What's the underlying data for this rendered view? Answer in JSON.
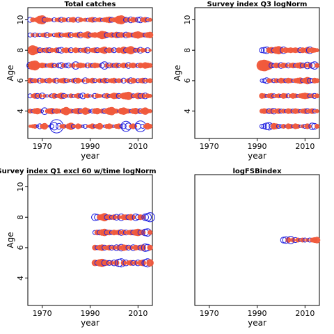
{
  "colors": {
    "positive": "#f05a3c",
    "negative": "#1f1fe0",
    "frame": "#000000"
  },
  "chart_data": [
    {
      "type": "scatter",
      "subtype": "bubble-residuals",
      "title": "Total catches",
      "xlabel": "year",
      "ylabel": "Age",
      "xlim": [
        1964,
        2016
      ],
      "ylim": [
        2.2,
        10.8
      ],
      "xticks": [
        1970,
        1990,
        2010
      ],
      "yticks": [
        4,
        6,
        8,
        10
      ],
      "x": [
        1965,
        1966,
        1967,
        1968,
        1969,
        1970,
        1971,
        1972,
        1973,
        1974,
        1975,
        1976,
        1977,
        1978,
        1979,
        1980,
        1981,
        1982,
        1983,
        1984,
        1985,
        1986,
        1987,
        1988,
        1989,
        1990,
        1991,
        1992,
        1993,
        1994,
        1995,
        1996,
        1997,
        1998,
        1999,
        2000,
        2001,
        2002,
        2003,
        2004,
        2005,
        2006,
        2007,
        2008,
        2009,
        2010,
        2011,
        2012,
        2013,
        2014,
        2015
      ],
      "series": [
        {
          "age": 3,
          "values": [
            0.3,
            0.4,
            0.5,
            -0.3,
            -0.6,
            0.5,
            0.7,
            0.3,
            -0.2,
            -0.5,
            -0.9,
            -1.6,
            -0.7,
            0.4,
            0.5,
            -0.3,
            0.6,
            0.8,
            -0.5,
            0.3,
            0.6,
            0.4,
            -0.3,
            -0.5,
            0.3,
            0.4,
            0.6,
            -0.4,
            0.5,
            0.7,
            0.3,
            -0.3,
            0.5,
            0.6,
            0.4,
            -0.3,
            0.5,
            0.6,
            -0.4,
            -0.6,
            -1.2,
            -0.8,
            0.4,
            0.6,
            0.3,
            -0.7,
            -1.3,
            -0.5,
            0.4,
            0.7,
            0.5
          ]
        },
        {
          "age": 4,
          "values": [
            0.5,
            -0.4,
            0.6,
            0.7,
            0.5,
            -0.3,
            -0.8,
            0.4,
            0.6,
            0.7,
            -0.5,
            0.6,
            0.5,
            -0.3,
            0.7,
            0.9,
            0.6,
            0.5,
            -0.4,
            0.6,
            0.7,
            -0.6,
            0.5,
            0.8,
            0.6,
            -0.3,
            -0.5,
            0.6,
            0.7,
            0.4,
            0.5,
            -0.6,
            0.6,
            0.8,
            0.9,
            0.6,
            0.5,
            -0.3,
            0.7,
            0.8,
            0.6,
            0.5,
            -0.4,
            0.6,
            0.7,
            0.5,
            -0.6,
            0.6,
            0.8,
            0.5,
            0.4
          ]
        },
        {
          "age": 5,
          "values": [
            -0.5,
            0.4,
            0.6,
            -0.6,
            0.5,
            -0.7,
            0.4,
            -0.3,
            0.3,
            -0.5,
            0.6,
            -0.4,
            0.5,
            0.7,
            -0.6,
            0.4,
            -0.3,
            0.5,
            -0.4,
            0.4,
            0.6,
            -0.5,
            -0.7,
            0.4,
            0.5,
            -0.3,
            0.3,
            -0.6,
            0.5,
            0.4,
            0.3,
            -0.5,
            0.6,
            -0.4,
            0.5,
            0.7,
            0.6,
            -0.6,
            0.5,
            0.7,
            0.8,
            0.9,
            0.6,
            -0.5,
            0.5,
            0.7,
            -0.6,
            0.6,
            -0.7,
            0.5,
            0.4
          ]
        },
        {
          "age": 6,
          "values": [
            0.6,
            -0.5,
            0.5,
            0.4,
            -0.6,
            0.5,
            0.4,
            -0.5,
            0.6,
            0.3,
            0.5,
            -0.6,
            0.4,
            0.5,
            0.6,
            -0.5,
            0.4,
            -0.3,
            0.5,
            -0.6,
            0.6,
            0.3,
            0.4,
            -0.7,
            0.5,
            0.4,
            0.6,
            -0.5,
            0.3,
            0.5,
            -0.4,
            0.6,
            -0.5,
            0.4,
            0.5,
            0.6,
            -0.4,
            0.5,
            0.4,
            -0.6,
            0.3,
            0.5,
            -0.7,
            0.6,
            0.4,
            -0.5,
            0.5,
            0.6,
            -0.6,
            0.4,
            0.5
          ]
        },
        {
          "age": 7,
          "values": [
            -0.8,
            1.0,
            1.1,
            0.7,
            0.5,
            0.6,
            0.5,
            -0.4,
            0.5,
            0.6,
            -0.5,
            0.4,
            -0.6,
            -0.7,
            0.5,
            -0.5,
            -0.6,
            0.4,
            0.5,
            -0.9,
            0.5,
            0.6,
            0.5,
            0.4,
            -0.6,
            0.5,
            -0.5,
            0.6,
            0.5,
            0.4,
            -0.6,
            -0.9,
            0.5,
            -0.6,
            0.5,
            -0.5,
            0.6,
            -0.5,
            0.4,
            0.6,
            0.5,
            -0.7,
            0.5,
            0.6,
            0.4,
            -0.5,
            0.6,
            0.5,
            0.7,
            0.6,
            0.5
          ]
        },
        {
          "age": 8,
          "values": [
            0.4,
            1.1,
            0.9,
            0.6,
            -0.6,
            0.5,
            -0.5,
            0.6,
            -0.6,
            0.5,
            0.4,
            0.6,
            -0.6,
            -0.7,
            0.5,
            0.6,
            0.5,
            -0.6,
            0.4,
            0.6,
            0.5,
            -0.5,
            0.5,
            0.6,
            -0.7,
            0.4,
            0.5,
            0.6,
            -0.6,
            0.5,
            0.6,
            0.8,
            -0.5,
            0.6,
            0.5,
            -0.6,
            -0.4,
            0.6,
            0.5,
            0.8,
            -0.6,
            0.7,
            0.9,
            0.6,
            -0.5,
            0.5,
            -0.7,
            0.5,
            0.4,
            -0.6,
            0.3
          ]
        },
        {
          "age": 9,
          "values": [
            -0.5,
            0.4,
            -0.5,
            0.4,
            -0.4,
            0.4,
            0.5,
            -0.6,
            0.4,
            0.3,
            -0.4,
            0.5,
            0.6,
            -0.5,
            0.4,
            0.5,
            0.6,
            -0.6,
            0.4,
            0.5,
            0.6,
            -0.7,
            0.5,
            0.6,
            0.8,
            -0.5,
            0.5,
            0.6,
            0.5,
            0.7,
            0.9,
            0.8,
            -0.6,
            0.5,
            0.6,
            -0.5,
            0.7,
            -0.6,
            0.6,
            0.5,
            -0.7,
            0.6,
            0.5,
            -0.5,
            0.7,
            0.8,
            0.6,
            0.5,
            -0.5,
            0.6,
            0.7
          ]
        },
        {
          "age": 10,
          "values": [
            -0.6,
            0.5,
            0.4,
            0.6,
            0.9,
            1.0,
            -0.6,
            0.5,
            0.4,
            0.3,
            -0.5,
            0.4,
            0.5,
            -0.6,
            0.5,
            0.4,
            -0.5,
            0.5,
            0.6,
            0.4,
            -0.6,
            0.5,
            0.3,
            0.4,
            -0.4,
            0.5,
            0.6,
            -0.5,
            0.4,
            0.5,
            -0.4,
            0.5,
            0.6,
            0.7,
            -0.6,
            0.5,
            0.6,
            0.9,
            1.0,
            0.7,
            -0.6,
            0.5,
            -0.7,
            0.6,
            0.5,
            -0.6,
            -0.7,
            0.5,
            0.6,
            -0.5,
            0.4
          ]
        }
      ]
    },
    {
      "type": "scatter",
      "subtype": "bubble-residuals",
      "title": "Survey index Q3 logNorm",
      "xlabel": "year",
      "ylabel": "Age",
      "xlim": [
        1964,
        2016
      ],
      "ylim": [
        2.2,
        10.8
      ],
      "xticks": [
        1970,
        1990,
        2010
      ],
      "yticks": [
        4,
        6,
        8,
        10
      ],
      "x": [
        1992,
        1993,
        1994,
        1995,
        1996,
        1997,
        1998,
        1999,
        2000,
        2001,
        2002,
        2003,
        2004,
        2005,
        2006,
        2007,
        2008,
        2009,
        2010,
        2011,
        2012,
        2013,
        2014,
        2015
      ],
      "series": [
        {
          "age": 3,
          "values": [
            -0.5,
            -0.6,
            -0.8,
            -0.9,
            -0.6,
            0.7,
            0.6,
            -0.5,
            -0.4,
            0.5,
            -0.3,
            0.6,
            0.5,
            -0.4,
            0.6,
            0.5,
            -0.3,
            0.4,
            -0.5,
            0.6,
            0.4,
            -0.8,
            -0.7,
            0.5
          ]
        },
        {
          "age": 4,
          "values": [
            0.5,
            0.6,
            0.5,
            -0.6,
            0.6,
            -0.7,
            0.5,
            0.6,
            -0.5,
            0.5,
            -0.4,
            0.6,
            0.5,
            -0.5,
            0.6,
            0.5,
            -0.4,
            0.5,
            0.6,
            -0.6,
            0.5,
            0.6,
            -0.5,
            0.4
          ]
        },
        {
          "age": 5,
          "values": [
            0.6,
            0.5,
            -0.4,
            0.5,
            0.6,
            -0.5,
            0.4,
            0.5,
            -0.4,
            0.6,
            0.5,
            -0.5,
            0.4,
            0.6,
            0.5,
            -0.4,
            0.5,
            0.6,
            0.7,
            0.6,
            -0.5,
            0.5,
            -0.6,
            0.5
          ]
        },
        {
          "age": 6,
          "values": [
            -0.4,
            -0.5,
            -0.7,
            0.5,
            0.4,
            -0.5,
            0.5,
            -0.4,
            0.6,
            0.5,
            -0.5,
            0.6,
            0.5,
            -0.4,
            0.5,
            0.6,
            0.7,
            -0.5,
            0.6,
            0.8,
            -0.6,
            -0.5,
            0.6,
            0.5
          ]
        },
        {
          "age": 7,
          "values": [
            1.2,
            1.3,
            1.1,
            0.9,
            -0.6,
            -0.5,
            0.6,
            0.5,
            -0.7,
            0.6,
            0.5,
            -0.6,
            0.5,
            0.6,
            -0.5,
            0.6,
            0.7,
            -0.6,
            0.5,
            -0.8,
            0.6,
            -0.7,
            -0.9,
            0.5
          ]
        },
        {
          "age": 8,
          "values": [
            -0.6,
            -0.7,
            -0.8,
            0.6,
            0.7,
            -0.6,
            0.8,
            0.9,
            0.7,
            -0.8,
            0.6,
            0.5,
            0.6,
            0.5,
            0.6,
            0.5,
            -0.6,
            0.6,
            0.5,
            0.7,
            -0.8,
            0.6,
            0.5,
            0.4
          ]
        }
      ]
    },
    {
      "type": "scatter",
      "subtype": "bubble-residuals",
      "title": "Survey index Q1 excl 60 w/time logNorm",
      "xlabel": "year",
      "ylabel": "Age",
      "xlim": [
        1964,
        2016
      ],
      "ylim": [
        2.2,
        10.8
      ],
      "xticks": [
        1970,
        1990,
        2010
      ],
      "yticks": [
        4,
        6,
        8,
        10
      ],
      "x": [
        1992,
        1993,
        1994,
        1995,
        1996,
        1997,
        1998,
        1999,
        2000,
        2001,
        2002,
        2003,
        2004,
        2005,
        2006,
        2007,
        2008,
        2009,
        2010,
        2011,
        2012,
        2013,
        2014,
        2015
      ],
      "series": [
        {
          "age": 5,
          "values": [
            0.7,
            -0.6,
            0.8,
            0.9,
            -0.7,
            0.6,
            -0.6,
            0.5,
            -0.7,
            0.6,
            -0.9,
            -1.0,
            0.6,
            -0.7,
            0.5,
            0.6,
            -0.6,
            0.5,
            -0.7,
            0.6,
            0.7,
            -0.8,
            -1.0,
            0.8
          ]
        },
        {
          "age": 6,
          "values": [
            0.6,
            -0.5,
            0.6,
            0.7,
            -0.6,
            0.5,
            0.6,
            -0.6,
            0.5,
            -0.7,
            0.6,
            -0.8,
            0.7,
            0.6,
            -0.6,
            0.5,
            -0.7,
            0.6,
            0.5,
            -0.6,
            0.7,
            -0.9,
            -0.8,
            0.6
          ]
        },
        {
          "age": 7,
          "values": [
            -0.5,
            0.6,
            -0.6,
            0.7,
            0.8,
            -0.6,
            0.6,
            -0.5,
            0.6,
            0.5,
            0.6,
            -0.7,
            0.6,
            -0.6,
            0.5,
            0.6,
            -0.6,
            0.7,
            0.8,
            -0.6,
            0.6,
            -0.8,
            -0.9,
            0.5
          ]
        },
        {
          "age": 8,
          "values": [
            -0.8,
            -0.7,
            0.6,
            0.7,
            0.9,
            -0.6,
            0.6,
            -0.5,
            0.6,
            -0.7,
            0.5,
            -0.8,
            0.6,
            0.6,
            -0.6,
            0.7,
            0.5,
            -0.8,
            -0.6,
            0.6,
            0.5,
            -0.8,
            -0.9,
            -1.1
          ]
        }
      ]
    },
    {
      "type": "scatter",
      "subtype": "bubble-residuals",
      "title": "logFSBindex",
      "xlabel": "year",
      "ylabel": "",
      "xlim": [
        1964,
        2016
      ],
      "ylim": [
        2.2,
        10.8
      ],
      "xticks": [
        1970,
        1990,
        2010
      ],
      "yticks": [],
      "x": [
        2001,
        2002,
        2003,
        2004,
        2005,
        2006,
        2007,
        2008,
        2009,
        2010,
        2011,
        2012,
        2013,
        2014,
        2015
      ],
      "series": [
        {
          "age": 6.5,
          "values": [
            -0.7,
            -0.8,
            0.6,
            -0.9,
            0.5,
            -0.6,
            0.5,
            -0.4,
            0.5,
            -0.5,
            0.4,
            -0.5,
            0.5,
            0.6,
            0.7
          ]
        }
      ]
    }
  ]
}
